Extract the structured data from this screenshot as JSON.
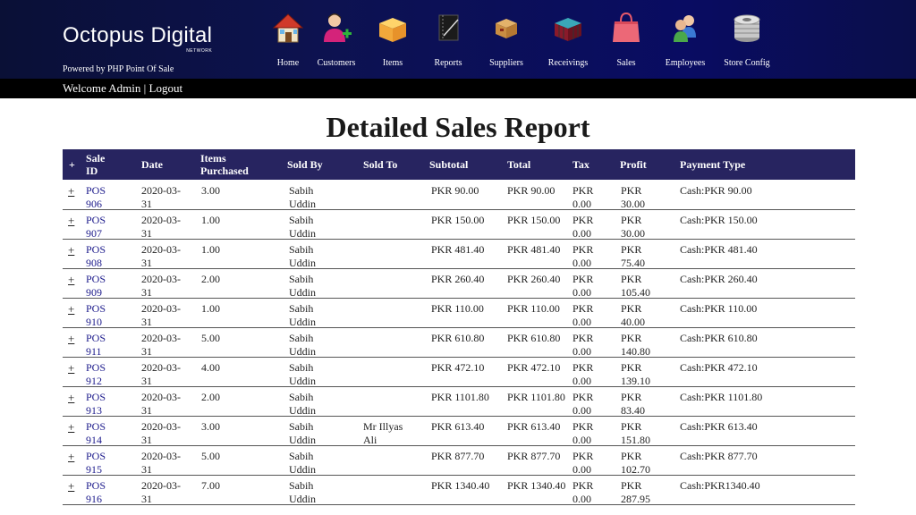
{
  "brand": {
    "name": "Octopus Digital",
    "network": "NETWORK",
    "powered_by": "Powered by PHP Point Of Sale"
  },
  "nav": [
    {
      "label": "Home",
      "icon": "home-icon"
    },
    {
      "label": "Customers",
      "icon": "customers-icon"
    },
    {
      "label": "Items",
      "icon": "items-icon"
    },
    {
      "label": "Reports",
      "icon": "reports-icon"
    },
    {
      "label": "Suppliers",
      "icon": "suppliers-icon"
    },
    {
      "label": "Receivings",
      "icon": "receivings-icon"
    },
    {
      "label": "Sales",
      "icon": "sales-icon"
    },
    {
      "label": "Employees",
      "icon": "employees-icon"
    },
    {
      "label": "Store Config",
      "icon": "store-config-icon"
    }
  ],
  "welcome": {
    "text": "Welcome Admin | ",
    "logout": "Logout"
  },
  "report": {
    "title": "Detailed Sales Report",
    "columns": {
      "expand": "+",
      "sale_id": "Sale ID",
      "date": "Date",
      "items": "Items Purchased",
      "sold_by": "Sold By",
      "sold_to": "Sold To",
      "subtotal": "Subtotal",
      "total": "Total",
      "tax": "Tax",
      "profit": "Profit",
      "payment_type": "Payment Type"
    },
    "rows": [
      {
        "expand": "+",
        "sale_id": "POS 906",
        "date": "2020-03-31",
        "items": "3.00",
        "sold_by": "Sabih Uddin",
        "sold_to": "",
        "subtotal": "PKR 90.00",
        "total": "PKR 90.00",
        "tax": "PKR 0.00",
        "profit": "PKR 30.00",
        "payment": "Cash:PKR 90.00"
      },
      {
        "expand": "+",
        "sale_id": "POS 907",
        "date": "2020-03-31",
        "items": "1.00",
        "sold_by": "Sabih Uddin",
        "sold_to": "",
        "subtotal": "PKR 150.00",
        "total": "PKR 150.00",
        "tax": "PKR 0.00",
        "profit": "PKR 30.00",
        "payment": "Cash:PKR 150.00"
      },
      {
        "expand": "+",
        "sale_id": "POS 908",
        "date": "2020-03-31",
        "items": "1.00",
        "sold_by": "Sabih Uddin",
        "sold_to": "",
        "subtotal": "PKR 481.40",
        "total": "PKR 481.40",
        "tax": "PKR 0.00",
        "profit": "PKR 75.40",
        "payment": "Cash:PKR 481.40"
      },
      {
        "expand": "+",
        "sale_id": "POS 909",
        "date": "2020-03-31",
        "items": "2.00",
        "sold_by": "Sabih Uddin",
        "sold_to": "",
        "subtotal": "PKR 260.40",
        "total": "PKR 260.40",
        "tax": "PKR 0.00",
        "profit": "PKR 105.40",
        "payment": "Cash:PKR 260.40"
      },
      {
        "expand": "+",
        "sale_id": "POS 910",
        "date": "2020-03-31",
        "items": "1.00",
        "sold_by": "Sabih Uddin",
        "sold_to": "",
        "subtotal": "PKR 110.00",
        "total": "PKR 110.00",
        "tax": "PKR 0.00",
        "profit": "PKR 40.00",
        "payment": "Cash:PKR 110.00"
      },
      {
        "expand": "+",
        "sale_id": "POS 911",
        "date": "2020-03-31",
        "items": "5.00",
        "sold_by": "Sabih Uddin",
        "sold_to": "",
        "subtotal": "PKR 610.80",
        "total": "PKR 610.80",
        "tax": "PKR 0.00",
        "profit": "PKR 140.80",
        "payment": "Cash:PKR 610.80"
      },
      {
        "expand": "+",
        "sale_id": "POS 912",
        "date": "2020-03-31",
        "items": "4.00",
        "sold_by": "Sabih Uddin",
        "sold_to": "",
        "subtotal": "PKR 472.10",
        "total": "PKR 472.10",
        "tax": "PKR 0.00",
        "profit": "PKR 139.10",
        "payment": "Cash:PKR 472.10"
      },
      {
        "expand": "+",
        "sale_id": "POS 913",
        "date": "2020-03-31",
        "items": "2.00",
        "sold_by": "Sabih Uddin",
        "sold_to": "",
        "subtotal": "PKR 1101.80",
        "total": "PKR 1101.80",
        "tax": "PKR 0.00",
        "profit": "PKR 83.40",
        "payment": "Cash:PKR 1101.80"
      },
      {
        "expand": "+",
        "sale_id": "POS 914",
        "date": "2020-03-31",
        "items": "3.00",
        "sold_by": "Sabih Uddin",
        "sold_to": "Mr Illyas Ali",
        "subtotal": "PKR 613.40",
        "total": "PKR 613.40",
        "tax": "PKR 0.00",
        "profit": "PKR 151.80",
        "payment": "Cash:PKR 613.40"
      },
      {
        "expand": "+",
        "sale_id": "POS 915",
        "date": "2020-03-31",
        "items": "5.00",
        "sold_by": "Sabih Uddin",
        "sold_to": "",
        "subtotal": "PKR 877.70",
        "total": "PKR 877.70",
        "tax": "PKR 0.00",
        "profit": "PKR 102.70",
        "payment": "Cash:PKR 877.70"
      },
      {
        "expand": "+",
        "sale_id": "POS 916",
        "date": "2020-03-31",
        "items": "7.00",
        "sold_by": "Sabih Uddin",
        "sold_to": "",
        "subtotal": "PKR 1340.40",
        "total": "PKR 1340.40",
        "tax": "PKR 0.00",
        "profit": "PKR 287.95",
        "payment": "Cash:PKR1340.40"
      }
    ]
  },
  "colors": {
    "header_bg": "#0d1250",
    "table_header_bg": "#272460",
    "link": "#1d1b8c"
  }
}
